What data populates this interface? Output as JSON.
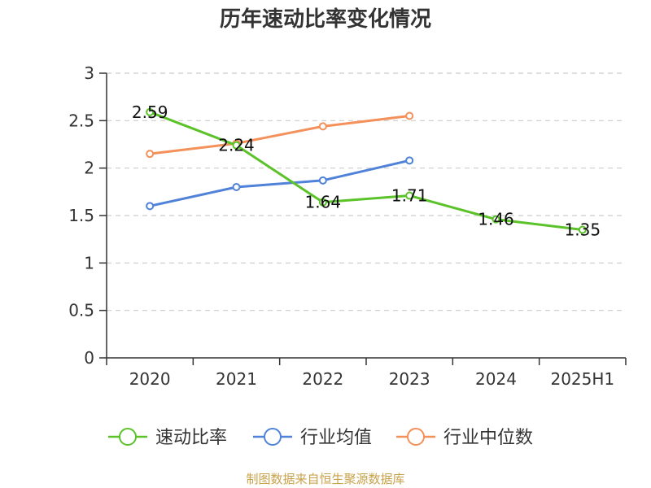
{
  "chart_data": {
    "type": "line",
    "title": "历年速动比率变化情况",
    "categories": [
      "2020",
      "2021",
      "2022",
      "2023",
      "2024",
      "2025H1"
    ],
    "ylim": [
      0,
      3
    ],
    "yticks": [
      "0",
      "0.5",
      "1",
      "1.5",
      "2",
      "2.5",
      "3"
    ],
    "grid": true,
    "legend_position": "bottom",
    "series": [
      {
        "name": "速动比率",
        "color": "#5cc22a",
        "values": [
          2.59,
          2.24,
          1.64,
          1.71,
          1.46,
          1.35
        ],
        "labels": [
          "2.59",
          "2.24",
          "1.64",
          "1.71",
          "1.46",
          "1.35"
        ]
      },
      {
        "name": "行业均值",
        "color": "#4f82d8",
        "values": [
          1.6,
          1.8,
          1.87,
          2.08,
          null,
          null
        ]
      },
      {
        "name": "行业中位数",
        "color": "#f4905a",
        "values": [
          2.15,
          2.26,
          2.44,
          2.55,
          null,
          null
        ]
      }
    ],
    "source": "制图数据来自恒生聚源数据库"
  }
}
